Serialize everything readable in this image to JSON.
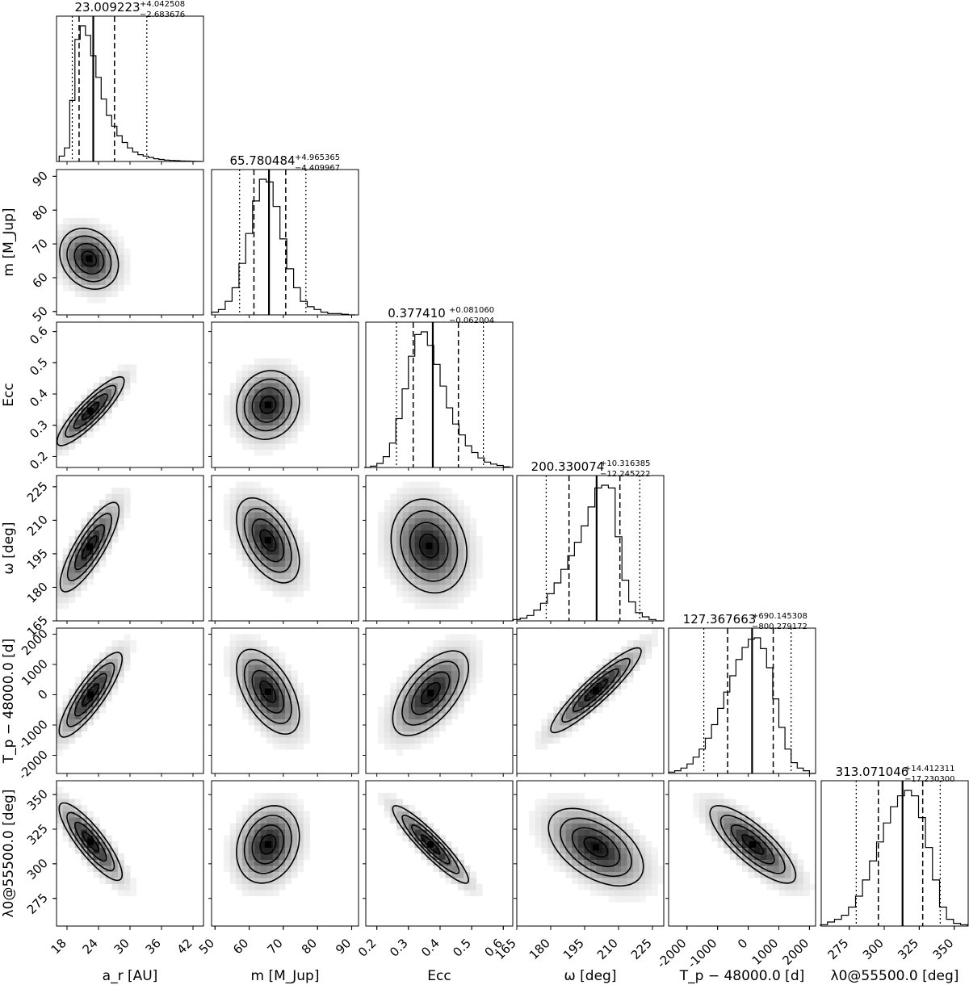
{
  "chart_data": {
    "type": "corner",
    "parameters": [
      {
        "id": "a_r",
        "label": "a_r [AU]",
        "range": [
          16,
          44
        ],
        "ticks": [
          18,
          24,
          30,
          36,
          42
        ],
        "median": 23.009223,
        "plus": 4.042508,
        "minus": 2.683676,
        "title_main": "23.009223",
        "title_plus": "+4.042508",
        "title_minus": "−2.683676",
        "hist_x": [
          17,
          18,
          19,
          20,
          21,
          22,
          23,
          24,
          25,
          26,
          27,
          28,
          29,
          30,
          31,
          32,
          33,
          34,
          35,
          36,
          37,
          38,
          39,
          40,
          41,
          42,
          43
        ],
        "hist_y": [
          0.04,
          0.1,
          0.45,
          0.9,
          1.0,
          0.93,
          0.78,
          0.62,
          0.46,
          0.34,
          0.26,
          0.19,
          0.14,
          0.1,
          0.07,
          0.05,
          0.04,
          0.03,
          0.02,
          0.015,
          0.01,
          0.008,
          0.006,
          0.004,
          0.003,
          0.002,
          0.001
        ],
        "q": [
          19.0,
          20.3,
          23.0,
          27.05,
          33.2
        ]
      },
      {
        "id": "m",
        "label": "m [M_Jup]",
        "range": [
          49,
          92
        ],
        "ticks": [
          50,
          60,
          70,
          80,
          90
        ],
        "median": 65.780484,
        "plus": 4.965365,
        "minus": 4.409967,
        "title_main": "65.780484",
        "title_plus": "+4.965365",
        "title_minus": "−4.409967",
        "hist_x": [
          50,
          52,
          54,
          56,
          58,
          60,
          62,
          64,
          66,
          68,
          70,
          72,
          74,
          76,
          78,
          80,
          82,
          84,
          86,
          88,
          90
        ],
        "hist_y": [
          0.02,
          0.04,
          0.1,
          0.2,
          0.38,
          0.6,
          0.84,
          1.0,
          0.98,
          0.8,
          0.56,
          0.34,
          0.2,
          0.1,
          0.06,
          0.04,
          0.02,
          0.01,
          0.01,
          0.005,
          0.0
        ],
        "q": [
          57.2,
          61.4,
          65.8,
          70.7,
          76.6
        ]
      },
      {
        "id": "ecc",
        "label": "Ecc",
        "range": [
          0.165,
          0.63
        ],
        "ticks": [
          0.2,
          0.3,
          0.4,
          0.5,
          0.6
        ],
        "median": 0.37741,
        "plus": 0.08106,
        "minus": 0.062004,
        "title_main": "0.377410",
        "title_plus": "+0.081060",
        "title_minus": "−0.062004",
        "hist_x": [
          0.17,
          0.19,
          0.21,
          0.23,
          0.25,
          0.27,
          0.29,
          0.31,
          0.33,
          0.35,
          0.37,
          0.39,
          0.41,
          0.43,
          0.45,
          0.47,
          0.49,
          0.51,
          0.53,
          0.55,
          0.57,
          0.59,
          0.61
        ],
        "hist_y": [
          0.0,
          0.01,
          0.03,
          0.08,
          0.18,
          0.36,
          0.58,
          0.82,
          0.98,
          1.0,
          0.9,
          0.76,
          0.6,
          0.44,
          0.32,
          0.24,
          0.16,
          0.11,
          0.07,
          0.04,
          0.025,
          0.015,
          0.005
        ],
        "q": [
          0.262,
          0.315,
          0.377,
          0.458,
          0.537
        ]
      },
      {
        "id": "omega",
        "label": "ω [deg]",
        "range": [
          165,
          230
        ],
        "ticks": [
          165,
          180,
          195,
          210,
          225
        ],
        "median": 200.330074,
        "plus": 10.316385,
        "minus": 12.245222,
        "title_main": "200.330074",
        "title_plus": "+10.316385",
        "title_minus": "−12.245222",
        "hist_x": [
          165,
          168,
          171,
          174,
          177,
          180,
          183,
          186,
          189,
          192,
          195,
          198,
          201,
          204,
          207,
          210,
          213,
          216,
          219,
          222,
          225,
          228
        ],
        "hist_y": [
          0.01,
          0.02,
          0.04,
          0.08,
          0.13,
          0.2,
          0.28,
          0.38,
          0.48,
          0.58,
          0.7,
          0.84,
          0.98,
          1.0,
          0.98,
          0.62,
          0.3,
          0.14,
          0.06,
          0.03,
          0.01,
          0.0
        ],
        "q": [
          178.0,
          188.1,
          200.3,
          210.6,
          219.4
        ]
      },
      {
        "id": "tp",
        "label": "T_p − 48000.0 [d]",
        "range": [
          -2600,
          2200
        ],
        "ticks": [
          -2000,
          -1000,
          0,
          1000,
          2000
        ],
        "median": 127.367663,
        "plus": 690.145308,
        "minus": 800.279172,
        "title_main": "127.367663",
        "title_plus": "+690.145308",
        "title_minus": "−800.279172",
        "hist_x": [
          -2500,
          -2300,
          -2100,
          -1900,
          -1700,
          -1500,
          -1300,
          -1100,
          -900,
          -700,
          -500,
          -300,
          -100,
          100,
          300,
          500,
          700,
          900,
          1100,
          1300,
          1500,
          1700,
          1900,
          2100
        ],
        "hist_y": [
          0.01,
          0.02,
          0.04,
          0.07,
          0.12,
          0.18,
          0.26,
          0.36,
          0.48,
          0.6,
          0.72,
          0.84,
          0.93,
          0.99,
          1.0,
          0.92,
          0.78,
          0.55,
          0.34,
          0.18,
          0.08,
          0.04,
          0.02,
          0.0
        ],
        "q": [
          -1450,
          -673,
          127,
          817,
          1400
        ]
      },
      {
        "id": "lambda0",
        "label": "λ0@55500.0 [deg]",
        "range": [
          255,
          360
        ],
        "ticks": [
          275,
          300,
          325,
          350
        ],
        "median": 313.071046,
        "plus": 14.412311,
        "minus": 17.2303,
        "title_main": "313.071046",
        "title_plus": "+14.412311",
        "title_minus": "−17.230300",
        "hist_x": [
          257,
          262,
          267,
          272,
          277,
          282,
          287,
          292,
          297,
          302,
          307,
          312,
          317,
          322,
          327,
          332,
          337,
          342,
          347,
          352,
          357
        ],
        "hist_y": [
          0.01,
          0.03,
          0.05,
          0.08,
          0.14,
          0.22,
          0.34,
          0.48,
          0.62,
          0.76,
          0.88,
          0.96,
          1.0,
          0.96,
          0.8,
          0.58,
          0.34,
          0.14,
          0.05,
          0.02,
          0.01
        ],
        "q": [
          280,
          295.8,
          313.1,
          327.5,
          340
        ]
      }
    ],
    "pairs": [
      {
        "i": 1,
        "j": 0,
        "cx": 22.2,
        "cy": 65.6,
        "sx": 2.8,
        "sy": 4.5,
        "rho": -0.2
      },
      {
        "i": 2,
        "j": 0,
        "cx": 22.5,
        "cy": 0.345,
        "sx": 3.2,
        "sy": 0.055,
        "rho": 0.88
      },
      {
        "i": 2,
        "j": 1,
        "cx": 65.5,
        "cy": 0.365,
        "sx": 4.6,
        "sy": 0.055,
        "rho": 0.1
      },
      {
        "i": 3,
        "j": 0,
        "cx": 22.3,
        "cy": 198.0,
        "sx": 2.8,
        "sy": 10.0,
        "rho": 0.82
      },
      {
        "i": 3,
        "j": 1,
        "cx": 65.5,
        "cy": 201.0,
        "sx": 4.6,
        "sy": 9.5,
        "rho": -0.5
      },
      {
        "i": 3,
        "j": 2,
        "cx": 0.365,
        "cy": 198.5,
        "sx": 0.06,
        "sy": 10.5,
        "rho": -0.15
      },
      {
        "i": 4,
        "j": 0,
        "cx": 22.5,
        "cy": 0.0,
        "sx": 3.0,
        "sy": 700.0,
        "rho": 0.85
      },
      {
        "i": 4,
        "j": 1,
        "cx": 65.5,
        "cy": 100.0,
        "sx": 4.6,
        "sy": 700.0,
        "rho": -0.55
      },
      {
        "i": 4,
        "j": 2,
        "cx": 0.37,
        "cy": 50.0,
        "sx": 0.06,
        "sy": 700.0,
        "rho": 0.6
      },
      {
        "i": 4,
        "j": 3,
        "cx": 200.0,
        "cy": 150.0,
        "sx": 10.0,
        "sy": 700.0,
        "rho": 0.92
      },
      {
        "i": 5,
        "j": 0,
        "cx": 22.5,
        "cy": 316.0,
        "sx": 3.0,
        "sy": 14.0,
        "rho": -0.85
      },
      {
        "i": 5,
        "j": 1,
        "cx": 65.5,
        "cy": 314.0,
        "sx": 4.6,
        "sy": 14.0,
        "rho": 0.2
      },
      {
        "i": 5,
        "j": 2,
        "cx": 0.37,
        "cy": 314.0,
        "sx": 0.06,
        "sy": 14.0,
        "rho": -0.92
      },
      {
        "i": 5,
        "j": 3,
        "cx": 200.0,
        "cy": 312.0,
        "sx": 10.5,
        "sy": 14.0,
        "rho": -0.5
      },
      {
        "i": 5,
        "j": 4,
        "cx": 150.0,
        "cy": 314.0,
        "sx": 700.0,
        "sy": 14.0,
        "rho": -0.8
      }
    ]
  }
}
